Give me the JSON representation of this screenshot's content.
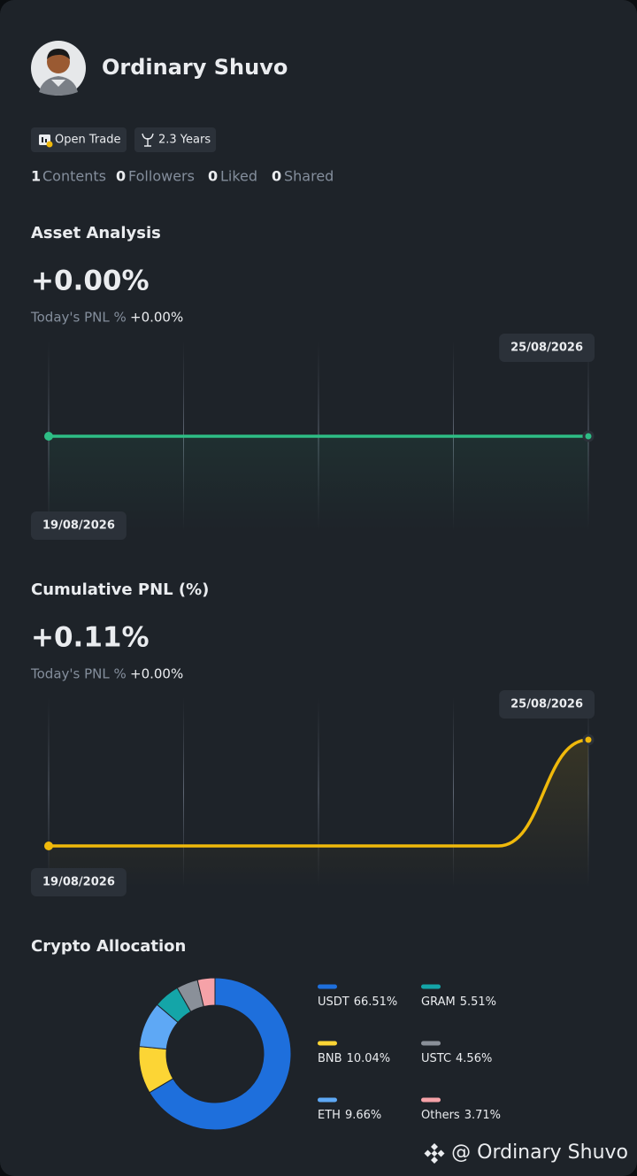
{
  "profile": {
    "name": "Ordinary Shuvo",
    "badges": [
      "Open Trade",
      "2.3 Years"
    ],
    "stats": [
      {
        "count": 1,
        "label": "Contents"
      },
      {
        "count": 0,
        "label": "Followers"
      },
      {
        "count": 0,
        "label": "Liked"
      },
      {
        "count": 0,
        "label": "Shared"
      }
    ]
  },
  "chart_data": [
    {
      "type": "line",
      "title": "Asset Analysis",
      "headline": "+0.00%",
      "note_label": "Today's PNL %",
      "note_value": "+0.00%",
      "x": [
        "19/08/2026",
        null,
        null,
        null,
        null,
        null,
        "25/08/2026"
      ],
      "series": [
        {
          "color": "#2ebd85",
          "values": [
            0,
            0,
            0,
            0,
            0,
            0,
            0
          ]
        }
      ]
    },
    {
      "type": "line",
      "title": "Cumulative PNL (%)",
      "headline": "+0.11%",
      "note_label": "Today's PNL %",
      "note_value": "+0.00%",
      "x": [
        "19/08/2026",
        null,
        null,
        null,
        null,
        null,
        "25/08/2026"
      ],
      "series": [
        {
          "color": "#f0b90b",
          "values": [
            0,
            0,
            0,
            0,
            0,
            0,
            0.11
          ]
        }
      ]
    },
    {
      "type": "donut",
      "title": "Crypto Allocation",
      "categories": [
        "USDT",
        "BNB",
        "ETH",
        "GRAM",
        "USTC",
        "Others"
      ],
      "values": [
        66.51,
        10.04,
        9.66,
        5.51,
        4.56,
        3.71
      ],
      "value_labels": [
        "66.51%",
        "10.04%",
        "9.66%",
        "5.51%",
        "4.56%",
        "3.71%"
      ],
      "colors": [
        "#1e6fdc",
        "#fcd535",
        "#5ea8f5",
        "#14a5a8",
        "#8a9099",
        "#f6a2a8"
      ]
    }
  ],
  "watermark": "@ Ordinary Shuvo"
}
